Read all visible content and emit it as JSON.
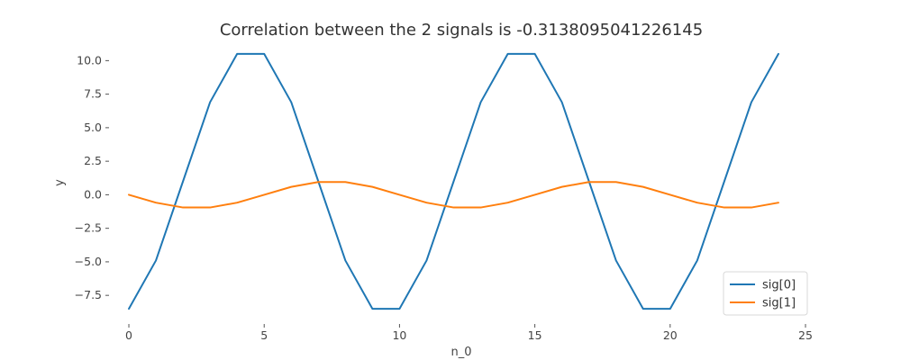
{
  "chart_data": {
    "type": "line",
    "title": "Correlation between the 2 signals is -0.3138095041226145",
    "xlabel": "n_0",
    "ylabel": "y",
    "xlim": [
      -0.6,
      25.2
    ],
    "ylim": [
      -9.3,
      11.3
    ],
    "xticks": [
      0,
      5,
      10,
      15,
      20,
      25
    ],
    "xtick_labels": [
      "0",
      "5",
      "10",
      "15",
      "20",
      "25"
    ],
    "yticks": [
      -7.5,
      -5.0,
      -2.5,
      0.0,
      2.5,
      5.0,
      7.5,
      10.0
    ],
    "ytick_labels": [
      "−7.5",
      "−5.0",
      "−2.5",
      "0.0",
      "2.5",
      "5.0",
      "7.5",
      "10.0"
    ],
    "grid": false,
    "legend_position": "bottom-right",
    "x": [
      0,
      1,
      2,
      3,
      4,
      5,
      6,
      7,
      8,
      9,
      10,
      11,
      12,
      13,
      14,
      15,
      16,
      17,
      18,
      19,
      20,
      21,
      22,
      23,
      24
    ],
    "series": [
      {
        "name": "sig[0]",
        "color": "#1f77b4",
        "values": [
          -8.5,
          -4.9,
          1.0,
          6.9,
          10.5,
          10.5,
          6.9,
          1.0,
          -4.9,
          -8.5,
          -8.5,
          -4.9,
          1.0,
          6.9,
          10.5,
          10.5,
          6.9,
          1.0,
          -4.9,
          -8.5,
          -8.5,
          -4.9,
          1.0,
          6.9,
          10.5
        ]
      },
      {
        "name": "sig[1]",
        "color": "#ff7f0e",
        "values": [
          0.0,
          -0.59,
          -0.95,
          -0.95,
          -0.59,
          0.0,
          0.59,
          0.95,
          0.95,
          0.59,
          0.0,
          -0.59,
          -0.95,
          -0.95,
          -0.59,
          0.0,
          0.59,
          0.95,
          0.95,
          0.59,
          0.0,
          -0.59,
          -0.95,
          -0.95,
          -0.59
        ]
      }
    ]
  }
}
